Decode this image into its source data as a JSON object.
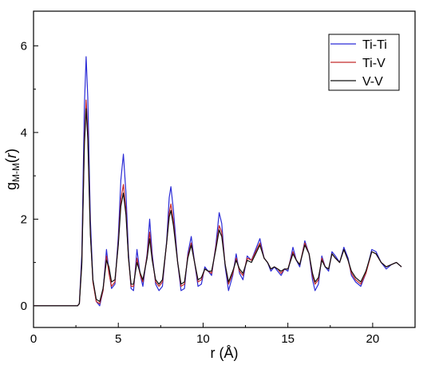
{
  "chart_data": {
    "type": "line",
    "title": "",
    "xlabel": "r (Å)",
    "ylabel": {
      "main": "g",
      "subscript": "M-M",
      "paren_open": "(",
      "var": "r",
      "paren_close": ")"
    },
    "xlim": [
      0,
      22.5
    ],
    "ylim": [
      -0.5,
      6.8
    ],
    "xticks": [
      0,
      5,
      10,
      15,
      20
    ],
    "yticks": [
      0,
      2,
      4,
      6
    ],
    "grid": false,
    "legend_position": "top-right",
    "series": [
      {
        "name": "Ti-Ti",
        "color": "#2b2bd6",
        "points": [
          [
            0,
            0
          ],
          [
            2.6,
            0
          ],
          [
            2.7,
            0.05
          ],
          [
            2.85,
            1.2
          ],
          [
            3.0,
            4.6
          ],
          [
            3.1,
            5.75
          ],
          [
            3.2,
            4.8
          ],
          [
            3.35,
            2.0
          ],
          [
            3.5,
            0.6
          ],
          [
            3.7,
            0.1
          ],
          [
            3.9,
            0.0
          ],
          [
            4.1,
            0.35
          ],
          [
            4.3,
            1.3
          ],
          [
            4.45,
            0.8
          ],
          [
            4.6,
            0.4
          ],
          [
            4.8,
            0.5
          ],
          [
            5.0,
            1.6
          ],
          [
            5.15,
            2.9
          ],
          [
            5.3,
            3.5
          ],
          [
            5.45,
            2.6
          ],
          [
            5.6,
            1.2
          ],
          [
            5.75,
            0.4
          ],
          [
            5.9,
            0.35
          ],
          [
            6.1,
            1.3
          ],
          [
            6.3,
            0.7
          ],
          [
            6.45,
            0.45
          ],
          [
            6.7,
            1.2
          ],
          [
            6.85,
            2.0
          ],
          [
            7.0,
            1.2
          ],
          [
            7.2,
            0.5
          ],
          [
            7.4,
            0.35
          ],
          [
            7.6,
            0.45
          ],
          [
            7.85,
            1.5
          ],
          [
            8.0,
            2.5
          ],
          [
            8.1,
            2.75
          ],
          [
            8.25,
            2.2
          ],
          [
            8.5,
            1.0
          ],
          [
            8.7,
            0.35
          ],
          [
            8.9,
            0.4
          ],
          [
            9.1,
            1.2
          ],
          [
            9.3,
            1.6
          ],
          [
            9.5,
            1.0
          ],
          [
            9.7,
            0.45
          ],
          [
            9.9,
            0.5
          ],
          [
            10.1,
            0.9
          ],
          [
            10.3,
            0.8
          ],
          [
            10.5,
            0.7
          ],
          [
            10.75,
            1.4
          ],
          [
            10.95,
            2.15
          ],
          [
            11.1,
            1.9
          ],
          [
            11.3,
            0.9
          ],
          [
            11.5,
            0.35
          ],
          [
            11.75,
            0.7
          ],
          [
            11.95,
            1.2
          ],
          [
            12.15,
            0.75
          ],
          [
            12.35,
            0.6
          ],
          [
            12.6,
            1.15
          ],
          [
            12.85,
            1.05
          ],
          [
            13.1,
            1.3
          ],
          [
            13.35,
            1.55
          ],
          [
            13.6,
            1.1
          ],
          [
            13.8,
            1.0
          ],
          [
            14.0,
            0.8
          ],
          [
            14.2,
            0.9
          ],
          [
            14.4,
            0.8
          ],
          [
            14.6,
            0.7
          ],
          [
            14.8,
            0.85
          ],
          [
            15.0,
            0.8
          ],
          [
            15.3,
            1.35
          ],
          [
            15.5,
            1.05
          ],
          [
            15.7,
            0.9
          ],
          [
            16.0,
            1.5
          ],
          [
            16.25,
            1.2
          ],
          [
            16.45,
            0.6
          ],
          [
            16.6,
            0.35
          ],
          [
            16.8,
            0.5
          ],
          [
            17.0,
            1.15
          ],
          [
            17.2,
            0.9
          ],
          [
            17.4,
            0.8
          ],
          [
            17.6,
            1.25
          ],
          [
            17.8,
            1.15
          ],
          [
            18.05,
            1.0
          ],
          [
            18.3,
            1.35
          ],
          [
            18.55,
            1.1
          ],
          [
            18.75,
            0.7
          ],
          [
            19.0,
            0.55
          ],
          [
            19.3,
            0.45
          ],
          [
            19.6,
            0.75
          ],
          [
            19.95,
            1.3
          ],
          [
            20.2,
            1.25
          ],
          [
            20.5,
            1.0
          ],
          [
            20.8,
            0.85
          ],
          [
            21.1,
            0.95
          ],
          [
            21.4,
            1.0
          ],
          [
            21.7,
            0.9
          ]
        ]
      },
      {
        "name": "Ti-V",
        "color": "#c42a2a",
        "points": [
          [
            0,
            0
          ],
          [
            2.6,
            0
          ],
          [
            2.7,
            0.05
          ],
          [
            2.85,
            1.0
          ],
          [
            3.0,
            3.8
          ],
          [
            3.1,
            4.75
          ],
          [
            3.2,
            4.0
          ],
          [
            3.35,
            1.7
          ],
          [
            3.5,
            0.55
          ],
          [
            3.7,
            0.1
          ],
          [
            3.9,
            0.05
          ],
          [
            4.1,
            0.35
          ],
          [
            4.3,
            1.15
          ],
          [
            4.45,
            0.75
          ],
          [
            4.6,
            0.45
          ],
          [
            4.8,
            0.55
          ],
          [
            5.0,
            1.45
          ],
          [
            5.15,
            2.45
          ],
          [
            5.3,
            2.8
          ],
          [
            5.45,
            2.2
          ],
          [
            5.6,
            1.1
          ],
          [
            5.75,
            0.45
          ],
          [
            5.9,
            0.45
          ],
          [
            6.1,
            1.1
          ],
          [
            6.3,
            0.7
          ],
          [
            6.45,
            0.55
          ],
          [
            6.7,
            1.15
          ],
          [
            6.85,
            1.7
          ],
          [
            7.0,
            1.1
          ],
          [
            7.2,
            0.55
          ],
          [
            7.4,
            0.45
          ],
          [
            7.6,
            0.55
          ],
          [
            7.85,
            1.45
          ],
          [
            8.0,
            2.15
          ],
          [
            8.1,
            2.35
          ],
          [
            8.25,
            1.95
          ],
          [
            8.5,
            1.0
          ],
          [
            8.7,
            0.45
          ],
          [
            8.9,
            0.5
          ],
          [
            9.1,
            1.15
          ],
          [
            9.3,
            1.45
          ],
          [
            9.5,
            1.0
          ],
          [
            9.7,
            0.55
          ],
          [
            9.9,
            0.6
          ],
          [
            10.1,
            0.85
          ],
          [
            10.3,
            0.8
          ],
          [
            10.5,
            0.75
          ],
          [
            10.75,
            1.35
          ],
          [
            10.95,
            1.85
          ],
          [
            11.1,
            1.7
          ],
          [
            11.3,
            0.95
          ],
          [
            11.5,
            0.5
          ],
          [
            11.75,
            0.75
          ],
          [
            11.95,
            1.1
          ],
          [
            12.15,
            0.8
          ],
          [
            12.35,
            0.7
          ],
          [
            12.6,
            1.1
          ],
          [
            12.85,
            1.05
          ],
          [
            13.1,
            1.25
          ],
          [
            13.35,
            1.45
          ],
          [
            13.6,
            1.1
          ],
          [
            13.8,
            1.0
          ],
          [
            14.0,
            0.85
          ],
          [
            14.2,
            0.9
          ],
          [
            14.4,
            0.85
          ],
          [
            14.6,
            0.75
          ],
          [
            14.8,
            0.85
          ],
          [
            15.0,
            0.85
          ],
          [
            15.3,
            1.25
          ],
          [
            15.5,
            1.05
          ],
          [
            15.7,
            0.95
          ],
          [
            16.0,
            1.45
          ],
          [
            16.25,
            1.2
          ],
          [
            16.45,
            0.7
          ],
          [
            16.6,
            0.5
          ],
          [
            16.8,
            0.6
          ],
          [
            17.0,
            1.1
          ],
          [
            17.2,
            0.9
          ],
          [
            17.4,
            0.85
          ],
          [
            17.6,
            1.2
          ],
          [
            17.8,
            1.1
          ],
          [
            18.05,
            1.0
          ],
          [
            18.3,
            1.3
          ],
          [
            18.55,
            1.05
          ],
          [
            18.75,
            0.75
          ],
          [
            19.0,
            0.6
          ],
          [
            19.3,
            0.5
          ],
          [
            19.6,
            0.75
          ],
          [
            19.95,
            1.25
          ],
          [
            20.2,
            1.2
          ],
          [
            20.5,
            1.0
          ],
          [
            20.8,
            0.9
          ],
          [
            21.1,
            0.95
          ],
          [
            21.4,
            1.0
          ],
          [
            21.7,
            0.9
          ]
        ]
      },
      {
        "name": "V-V",
        "color": "#111111",
        "points": [
          [
            0,
            0
          ],
          [
            2.6,
            0
          ],
          [
            2.7,
            0.05
          ],
          [
            2.85,
            0.95
          ],
          [
            3.0,
            3.7
          ],
          [
            3.1,
            4.55
          ],
          [
            3.2,
            3.85
          ],
          [
            3.35,
            1.65
          ],
          [
            3.5,
            0.6
          ],
          [
            3.7,
            0.15
          ],
          [
            3.9,
            0.1
          ],
          [
            4.1,
            0.4
          ],
          [
            4.3,
            1.05
          ],
          [
            4.45,
            0.9
          ],
          [
            4.6,
            0.55
          ],
          [
            4.8,
            0.6
          ],
          [
            5.0,
            1.4
          ],
          [
            5.15,
            2.3
          ],
          [
            5.3,
            2.6
          ],
          [
            5.45,
            2.1
          ],
          [
            5.6,
            1.1
          ],
          [
            5.75,
            0.5
          ],
          [
            5.9,
            0.5
          ],
          [
            6.1,
            1.0
          ],
          [
            6.3,
            0.75
          ],
          [
            6.45,
            0.6
          ],
          [
            6.7,
            1.1
          ],
          [
            6.85,
            1.55
          ],
          [
            7.0,
            1.05
          ],
          [
            7.2,
            0.6
          ],
          [
            7.4,
            0.5
          ],
          [
            7.6,
            0.6
          ],
          [
            7.85,
            1.45
          ],
          [
            8.0,
            2.05
          ],
          [
            8.1,
            2.2
          ],
          [
            8.25,
            1.85
          ],
          [
            8.5,
            1.0
          ],
          [
            8.7,
            0.5
          ],
          [
            8.9,
            0.55
          ],
          [
            9.1,
            1.1
          ],
          [
            9.3,
            1.4
          ],
          [
            9.5,
            1.0
          ],
          [
            9.7,
            0.6
          ],
          [
            9.9,
            0.65
          ],
          [
            10.1,
            0.85
          ],
          [
            10.3,
            0.8
          ],
          [
            10.5,
            0.8
          ],
          [
            10.75,
            1.3
          ],
          [
            10.95,
            1.75
          ],
          [
            11.1,
            1.6
          ],
          [
            11.3,
            0.95
          ],
          [
            11.5,
            0.55
          ],
          [
            11.75,
            0.8
          ],
          [
            11.95,
            1.05
          ],
          [
            12.15,
            0.85
          ],
          [
            12.35,
            0.75
          ],
          [
            12.6,
            1.05
          ],
          [
            12.85,
            1.0
          ],
          [
            13.1,
            1.2
          ],
          [
            13.35,
            1.4
          ],
          [
            13.6,
            1.1
          ],
          [
            13.8,
            1.0
          ],
          [
            14.0,
            0.85
          ],
          [
            14.2,
            0.9
          ],
          [
            14.4,
            0.85
          ],
          [
            14.6,
            0.8
          ],
          [
            14.8,
            0.85
          ],
          [
            15.0,
            0.85
          ],
          [
            15.3,
            1.2
          ],
          [
            15.5,
            1.05
          ],
          [
            15.7,
            0.95
          ],
          [
            16.0,
            1.4
          ],
          [
            16.25,
            1.2
          ],
          [
            16.45,
            0.75
          ],
          [
            16.6,
            0.55
          ],
          [
            16.8,
            0.65
          ],
          [
            17.0,
            1.05
          ],
          [
            17.2,
            0.9
          ],
          [
            17.4,
            0.85
          ],
          [
            17.6,
            1.2
          ],
          [
            17.8,
            1.1
          ],
          [
            18.05,
            1.0
          ],
          [
            18.3,
            1.3
          ],
          [
            18.55,
            1.05
          ],
          [
            18.75,
            0.8
          ],
          [
            19.0,
            0.65
          ],
          [
            19.3,
            0.55
          ],
          [
            19.6,
            0.8
          ],
          [
            19.95,
            1.25
          ],
          [
            20.2,
            1.2
          ],
          [
            20.5,
            1.0
          ],
          [
            20.8,
            0.9
          ],
          [
            21.1,
            0.95
          ],
          [
            21.4,
            1.0
          ],
          [
            21.7,
            0.9
          ]
        ]
      }
    ]
  }
}
